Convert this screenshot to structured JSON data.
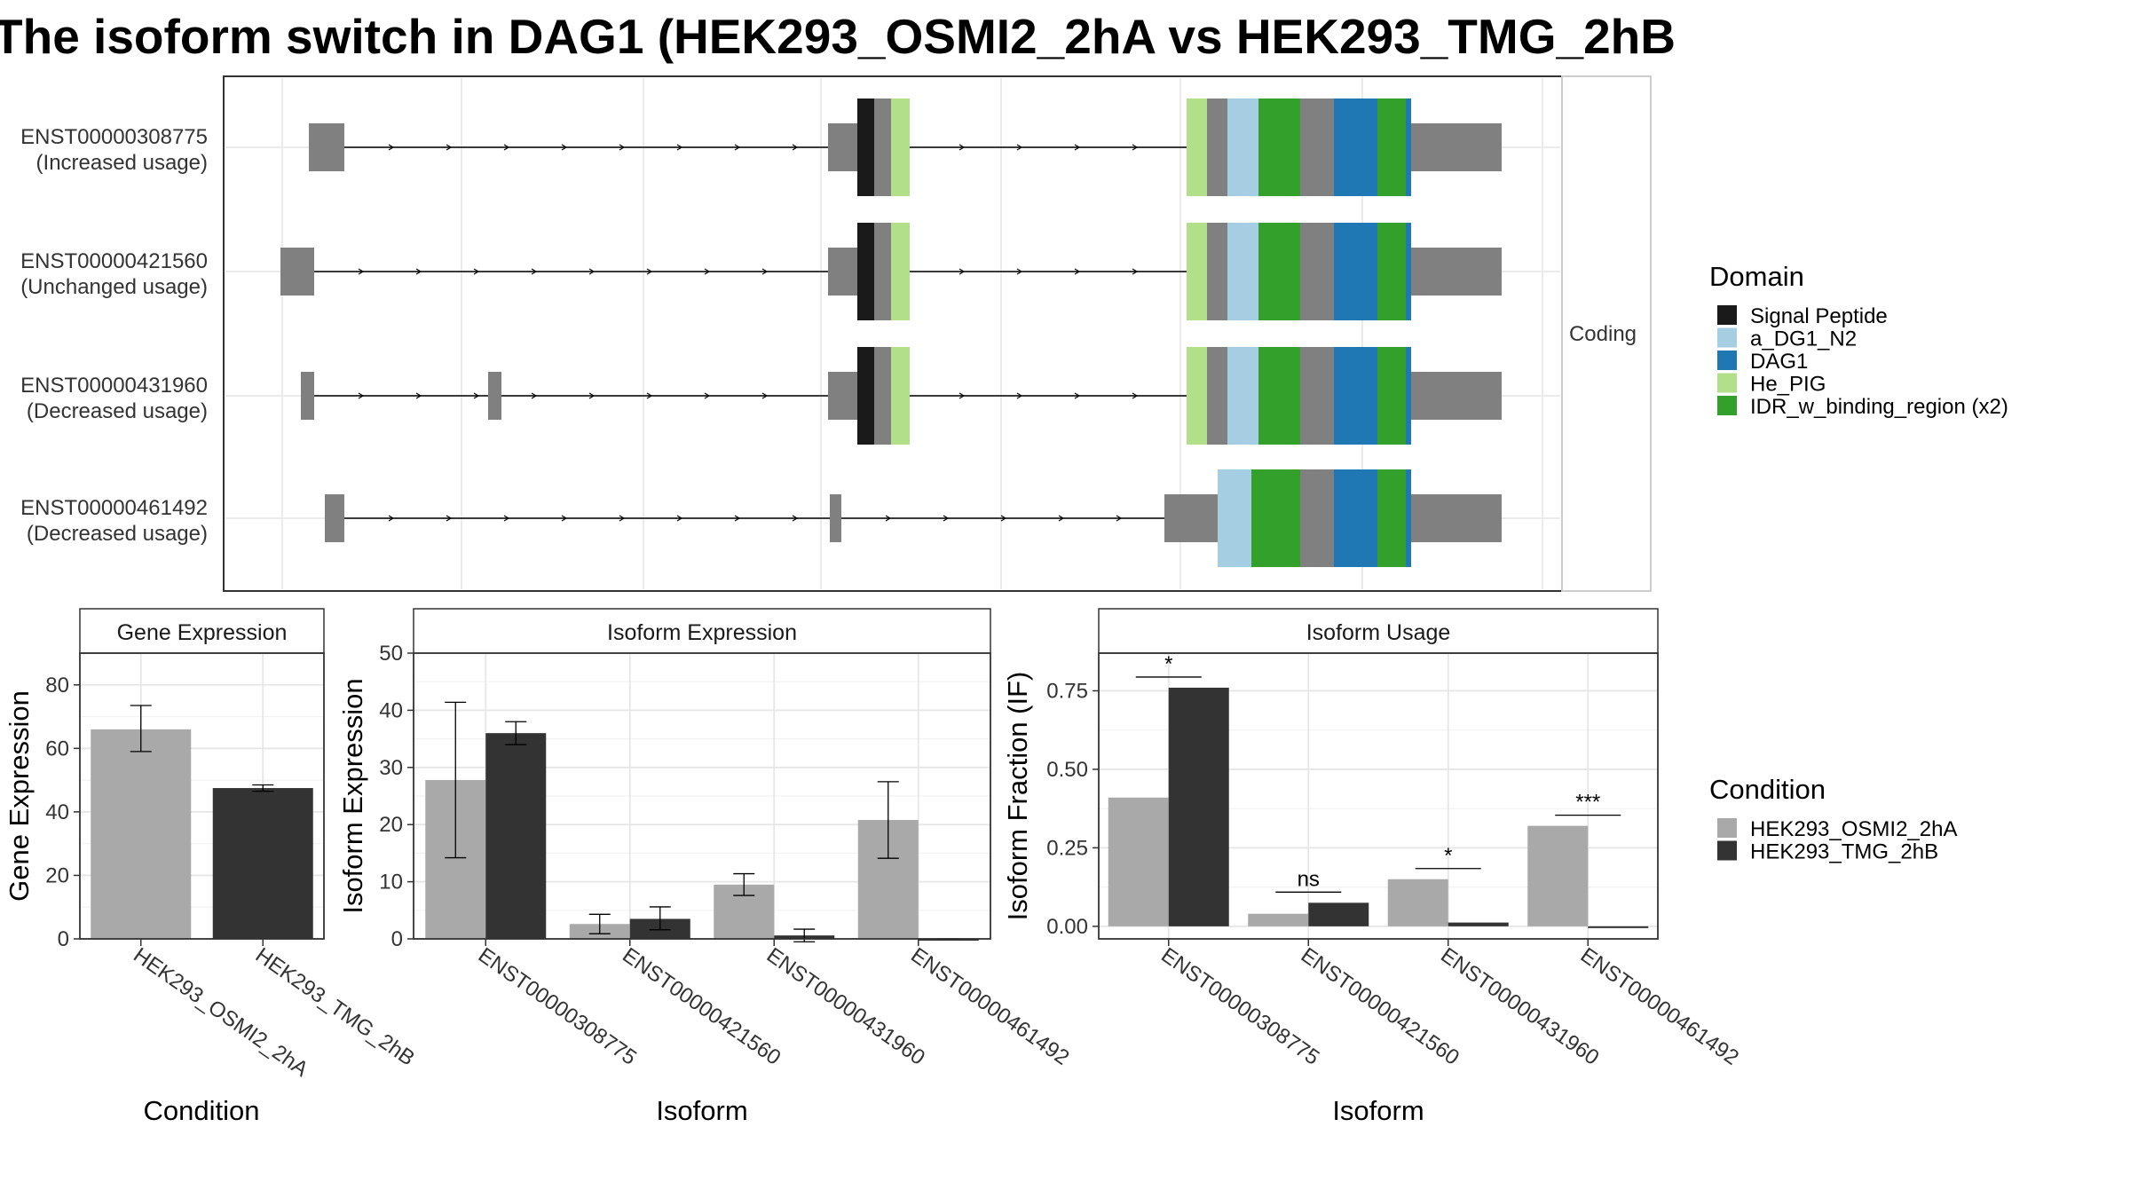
{
  "title": "The isoform switch in DAG1 (HEK293_OSMI2_2hA vs HEK293_TMG_2hB",
  "domain_legend": {
    "title": "Domain",
    "items": [
      {
        "label": "Signal Peptide",
        "color": "#1a1a1a"
      },
      {
        "label": "a_DG1_N2",
        "color": "#a6cee3"
      },
      {
        "label": "DAG1",
        "color": "#1f78b4"
      },
      {
        "label": "He_PIG",
        "color": "#b2df8a"
      },
      {
        "label": "IDR_w_binding_region (x2)",
        "color": "#33a02c"
      }
    ]
  },
  "condition_legend": {
    "title": "Condition",
    "items": [
      {
        "label": "HEK293_OSMI2_2hA",
        "color": "#a9a9a9"
      },
      {
        "label": "HEK293_TMG_2hB",
        "color": "#333333"
      }
    ]
  },
  "transcripts": {
    "strip": "Coding",
    "items": [
      {
        "id": "ENST00000308775",
        "usage": "(Increased usage)"
      },
      {
        "id": "ENST00000421560",
        "usage": "(Unchanged usage)"
      },
      {
        "id": "ENST00000431960",
        "usage": "(Decreased usage)"
      },
      {
        "id": "ENST00000461492",
        "usage": "(Decreased usage)"
      }
    ]
  },
  "chart_data": [
    {
      "type": "bar",
      "title": "Gene Expression",
      "xlabel": "Condition",
      "ylabel": "Gene Expression",
      "ylim": [
        0,
        90
      ],
      "yticks": [
        "0",
        "20",
        "40",
        "60",
        "80"
      ],
      "categories": [
        "HEK293_OSMI2_2hA",
        "HEK293_TMG_2hB"
      ],
      "values": [
        66,
        47.5
      ],
      "errors": [
        [
          59,
          73.5
        ],
        [
          46.5,
          48.5
        ]
      ],
      "colors": [
        "#a9a9a9",
        "#333333"
      ]
    },
    {
      "type": "bar",
      "title": "Isoform Expression",
      "xlabel": "Isoform",
      "ylabel": "Isoform Expression",
      "ylim": [
        0,
        50
      ],
      "yticks": [
        "0",
        "10",
        "20",
        "30",
        "40",
        "50"
      ],
      "categories": [
        "ENST00000308775",
        "ENST00000421560",
        "ENST00000431960",
        "ENST00000461492"
      ],
      "series": [
        {
          "name": "HEK293_OSMI2_2hA",
          "values": [
            27.8,
            2.6,
            9.5,
            20.8
          ],
          "errors": [
            [
              14.2,
              41.4
            ],
            [
              0.9,
              4.3
            ],
            [
              7.6,
              11.4
            ],
            [
              14.1,
              27.5
            ]
          ]
        },
        {
          "name": "HEK293_TMG_2hB",
          "values": [
            36,
            3.5,
            0.6,
            0
          ],
          "errors": [
            [
              34,
              38
            ],
            [
              1.6,
              5.6
            ],
            [
              -0.5,
              1.7
            ],
            [
              0,
              0
            ]
          ]
        }
      ]
    },
    {
      "type": "bar",
      "title": "Isoform Usage",
      "xlabel": "Isoform",
      "ylabel": "Isoform Fraction (IF)",
      "ylim": [
        -0.04,
        0.87
      ],
      "yticks": [
        "0.00",
        "0.25",
        "0.50",
        "0.75"
      ],
      "categories": [
        "ENST00000308775",
        "ENST00000421560",
        "ENST00000431960",
        "ENST00000461492"
      ],
      "series": [
        {
          "name": "HEK293_OSMI2_2hA",
          "values": [
            0.41,
            0.04,
            0.15,
            0.32
          ]
        },
        {
          "name": "HEK293_TMG_2hB",
          "values": [
            0.76,
            0.075,
            0.012,
            0
          ]
        }
      ],
      "significance": [
        "*",
        "ns",
        "*",
        "***"
      ]
    }
  ]
}
